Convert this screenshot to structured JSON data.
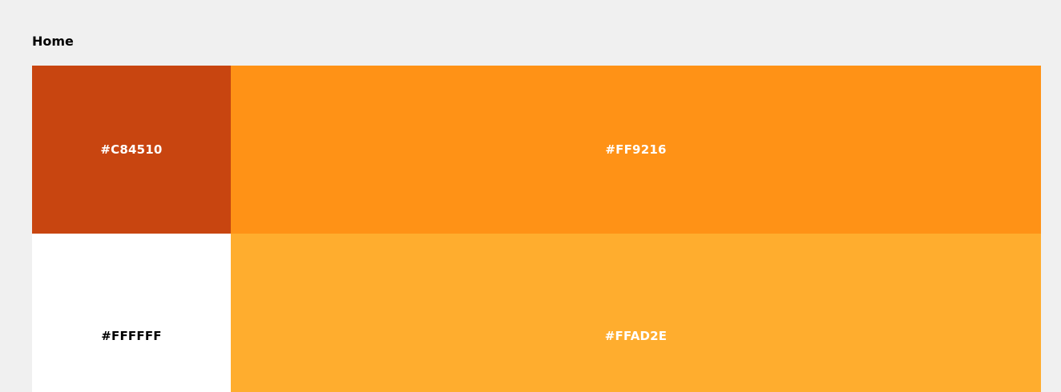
{
  "page": {
    "title": "Home",
    "background": "#f0f0f0"
  },
  "swatches": [
    {
      "label": "#C84510",
      "color": "#C84510",
      "text_color": "#FFFFFF"
    },
    {
      "label": "#FF9216",
      "color": "#FF9216",
      "text_color": "#FFFFFF"
    },
    {
      "label": "#FFFFFF",
      "color": "#FFFFFF",
      "text_color": "#000000"
    },
    {
      "label": "#FFAD2E",
      "color": "#FFAD2E",
      "text_color": "#FFFFFF"
    }
  ]
}
